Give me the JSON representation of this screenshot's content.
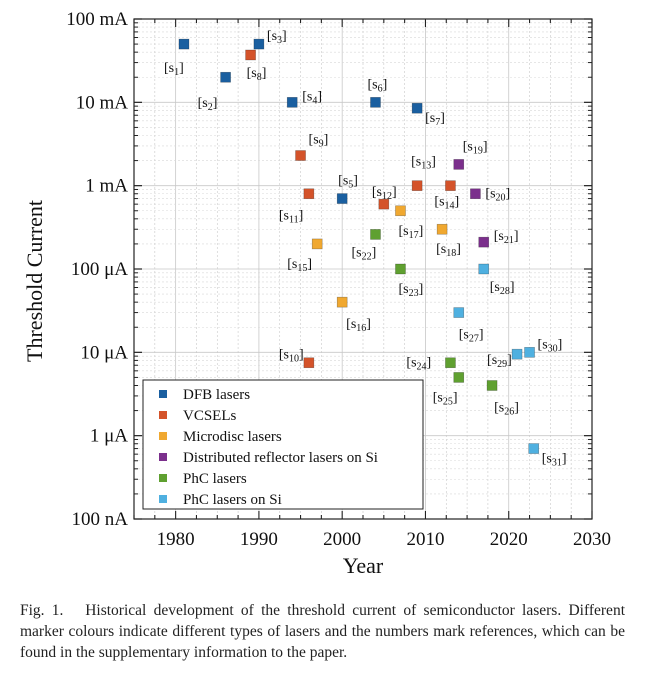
{
  "chart_data": {
    "type": "scatter",
    "xlabel": "Year",
    "ylabel": "Threshold Current",
    "xlim": [
      1975,
      2030
    ],
    "xticks": [
      1980,
      1990,
      2000,
      2010,
      2020,
      2030
    ],
    "ylim_log10_A": [
      -7,
      -1
    ],
    "yticks": [
      {
        "exp": -1,
        "label": "100 mA"
      },
      {
        "exp": -2,
        "label": "10 mA"
      },
      {
        "exp": -3,
        "label": "1 mA"
      },
      {
        "exp": -4,
        "label": "100 μA"
      },
      {
        "exp": -5,
        "label": "10 μA"
      },
      {
        "exp": -6,
        "label": "1 μA"
      },
      {
        "exp": -7,
        "label": "100 nA"
      }
    ],
    "grid": true,
    "legend_position": "bottom-left",
    "series": [
      {
        "name": "DFB lasers",
        "color": "#1a5fa0",
        "points": [
          {
            "x": 1981,
            "y": 0.05,
            "ref": "1"
          },
          {
            "x": 1986,
            "y": 0.02,
            "ref": "2"
          },
          {
            "x": 1990,
            "y": 0.05,
            "ref": "3"
          },
          {
            "x": 1994,
            "y": 0.01,
            "ref": "4"
          },
          {
            "x": 2004,
            "y": 0.01,
            "ref": "6"
          },
          {
            "x": 2009,
            "y": 0.0085,
            "ref": "7"
          },
          {
            "x": 2000,
            "y": 0.0007,
            "ref": "5"
          }
        ]
      },
      {
        "name": "VCSELs",
        "color": "#d4532a",
        "points": [
          {
            "x": 1989,
            "y": 0.037,
            "ref": "8"
          },
          {
            "x": 1995,
            "y": 0.0023,
            "ref": "9"
          },
          {
            "x": 1996,
            "y": 0.0008,
            "ref": "11"
          },
          {
            "x": 2005,
            "y": 0.0006,
            "ref": "12"
          },
          {
            "x": 2009,
            "y": 0.001,
            "ref": "13"
          },
          {
            "x": 2013,
            "y": 0.001,
            "ref": "14"
          },
          {
            "x": 1996,
            "y": 7.5e-06,
            "ref": "10"
          }
        ]
      },
      {
        "name": "Microdisc lasers",
        "color": "#f0a830",
        "points": [
          {
            "x": 1997,
            "y": 0.0002,
            "ref": "15"
          },
          {
            "x": 2000,
            "y": 4e-05,
            "ref": "16"
          },
          {
            "x": 2007,
            "y": 0.0005,
            "ref": "17"
          },
          {
            "x": 2012,
            "y": 0.0003,
            "ref": "18"
          }
        ]
      },
      {
        "name": "Distributed reflector lasers on Si",
        "color": "#7b2f8c",
        "points": [
          {
            "x": 2014,
            "y": 0.0018,
            "ref": "19"
          },
          {
            "x": 2016,
            "y": 0.0008,
            "ref": "20"
          },
          {
            "x": 2017,
            "y": 0.00021,
            "ref": "21"
          }
        ]
      },
      {
        "name": "PhC lasers",
        "color": "#5fa030",
        "points": [
          {
            "x": 2004,
            "y": 0.00026,
            "ref": "22"
          },
          {
            "x": 2007,
            "y": 0.0001,
            "ref": "23"
          },
          {
            "x": 2013,
            "y": 7.5e-06,
            "ref": "24"
          },
          {
            "x": 2014,
            "y": 5e-06,
            "ref": "25"
          },
          {
            "x": 2018,
            "y": 4e-06,
            "ref": "26"
          }
        ]
      },
      {
        "name": "PhC lasers on Si",
        "color": "#4fb0e0",
        "points": [
          {
            "x": 2014,
            "y": 3e-05,
            "ref": "27"
          },
          {
            "x": 2017,
            "y": 0.0001,
            "ref": "28"
          },
          {
            "x": 2021,
            "y": 9.5e-06,
            "ref": "29"
          },
          {
            "x": 2022.5,
            "y": 1e-05,
            "ref": "30"
          },
          {
            "x": 2023,
            "y": 7e-07,
            "ref": "31"
          }
        ]
      }
    ]
  },
  "caption": {
    "prefix": "Fig. 1.",
    "text": "Historical development of the threshold current of semiconductor lasers. Different marker colours indicate different types of lasers and the numbers mark references, which can be found in the supplementary information to the paper."
  }
}
